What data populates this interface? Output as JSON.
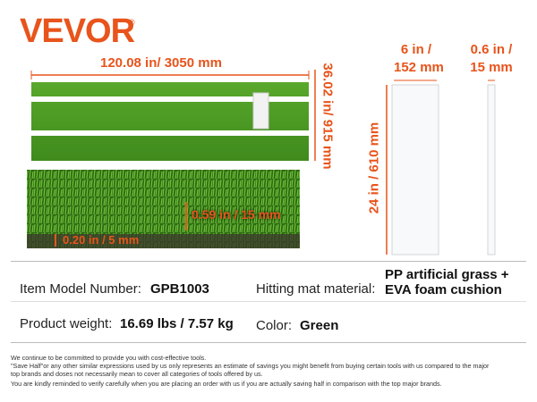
{
  "logo": {
    "brand": "VEVOR",
    "mark": "®"
  },
  "mat": {
    "length_label": "120.08 in/ 3050 mm",
    "width_label": "36.02 in/ 915 mm"
  },
  "grass": {
    "pile_label": "0.59 in / 15 mm",
    "base_label": "0.20 in / 5 mm"
  },
  "strip": {
    "width_label": [
      "6 in /",
      "152 mm"
    ],
    "height_label": "24 in / 610 mm"
  },
  "thin_strip": {
    "width_label": [
      "0.6 in /",
      "15 mm"
    ]
  },
  "specs": {
    "rows": [
      [
        {
          "label": "Item Model Number:",
          "value": "GPB1003"
        },
        {
          "label": "Hitting mat material:",
          "value": [
            "PP artificial grass +",
            "EVA foam cushion"
          ]
        }
      ],
      [
        {
          "label": "Product weight:",
          "value": "16.69 lbs / 7.57 kg"
        },
        {
          "label": "Color:",
          "value": "Green"
        }
      ]
    ]
  },
  "footer": {
    "lines": [
      "We continue to be committed to provide you with cost-effective tools.",
      "\"Save Half\"or any other similar expressions used by us only represents an estimate of savings you might benefit from buying certain tools with us compared to the major",
      "top brands and doses not necessarily mean to cover all categories of tools offered by us.",
      "You are kindly reminded to verify carefully when you are placing an order with us if you are actually saving half in comparison with the top major brands."
    ]
  }
}
